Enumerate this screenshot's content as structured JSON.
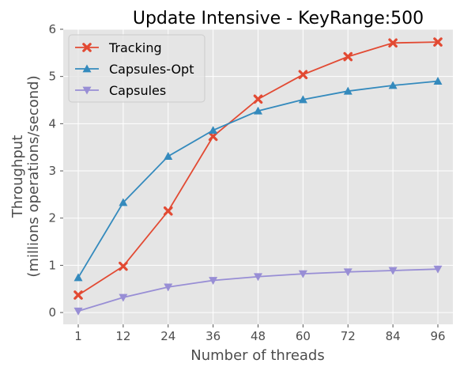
{
  "chart_data": {
    "type": "line",
    "title": "Update Intensive - KeyRange:500",
    "xlabel": "Number of threads",
    "ylabel_line1": "Throughput",
    "ylabel_line2": "(millions operations/second)",
    "categories": [
      "1",
      "12",
      "24",
      "36",
      "48",
      "60",
      "72",
      "84",
      "96"
    ],
    "ylim": [
      -0.25,
      6
    ],
    "yticks": [
      "0",
      "1",
      "2",
      "3",
      "4",
      "5",
      "6"
    ],
    "grid": true,
    "legend_position": "top-left",
    "series": [
      {
        "name": "Tracking",
        "color": "#e24a33",
        "marker": "x",
        "values": [
          0.37,
          0.98,
          2.15,
          3.73,
          4.52,
          5.04,
          5.42,
          5.71,
          5.73
        ]
      },
      {
        "name": "Capsules-Opt",
        "color": "#348abd",
        "marker": "triangle-up",
        "values": [
          0.74,
          2.33,
          3.31,
          3.86,
          4.27,
          4.51,
          4.69,
          4.81,
          4.9
        ]
      },
      {
        "name": "Capsules",
        "color": "#988ed5",
        "marker": "triangle-down",
        "values": [
          0.03,
          0.32,
          0.54,
          0.68,
          0.76,
          0.82,
          0.86,
          0.89,
          0.92
        ]
      }
    ]
  }
}
